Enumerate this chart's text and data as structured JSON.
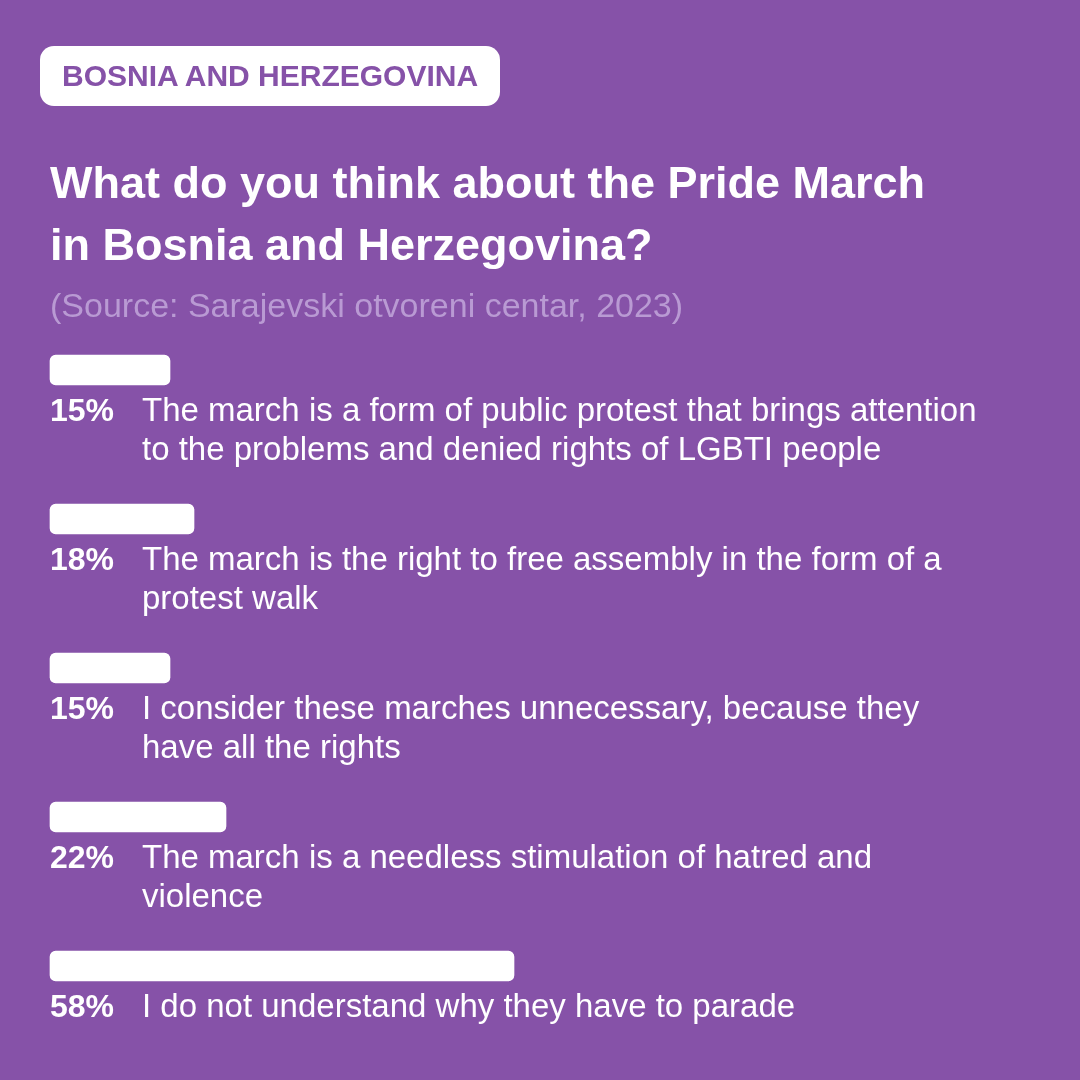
{
  "chart_data": {
    "type": "bar",
    "orientation": "horizontal",
    "subtitle": "BOSNIA AND HERZEGOVINA",
    "title": "What do you think about the Pride March in Bosnia and Herzegovina?",
    "annotations": [
      "(Source: Sarajevski otvoreni centar, 2023)"
    ],
    "categories": [
      "The march is a form of public protest that brings attention to the problems and denied rights of LGBTI people",
      "The march is the right to free assembly in the form of a protest walk",
      "I consider these marches unnecessary, because they have all the rights",
      "The march is a needless stimulation of hatred and violence",
      "I do not understand why they have to parade"
    ],
    "values": [
      15,
      18,
      15,
      22,
      58
    ],
    "value_labels": [
      "15%",
      "18%",
      "15%",
      "22%",
      "58%"
    ],
    "color": "#ffffff",
    "legend": false
  }
}
